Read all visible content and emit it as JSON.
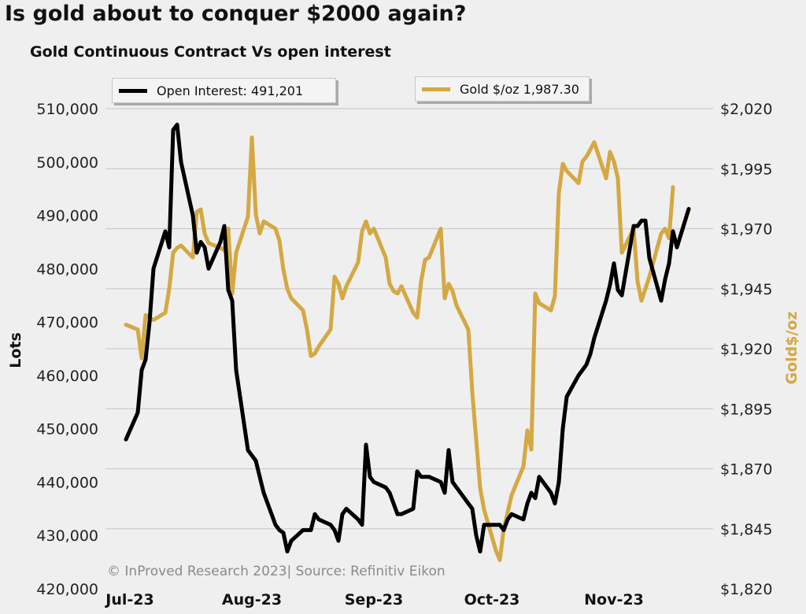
{
  "title": "Is gold about to conquer $2000 again?",
  "subtitle": "Gold Continuous Contract Vs open interest",
  "credit": "© InProved Research 2023| Source: Refinitiv Eikon",
  "colors": {
    "open_interest": "#000000",
    "gold": "#d4a843",
    "grid": "#cccccc",
    "background": "#efefef"
  },
  "chart_data": {
    "type": "line",
    "xlabel": "",
    "x_ticks": [
      "Jul-23",
      "Aug-23",
      "Sep-23",
      "Oct-23",
      "Nov-23"
    ],
    "y_left": {
      "label": "Lots",
      "lim": [
        420000,
        510000
      ],
      "ticks": [
        "420,000",
        "430,000",
        "440,000",
        "450,000",
        "460,000",
        "470,000",
        "480,000",
        "490,000",
        "500,000",
        "510,000"
      ]
    },
    "y_right": {
      "label": "Gold$/oz",
      "lim": [
        1820,
        2020
      ],
      "ticks": [
        "$1,820",
        "$1,845",
        "$1,870",
        "$1,895",
        "$1,920",
        "$1,945",
        "$1,970",
        "$1,995",
        "$2,020"
      ]
    },
    "grid": "horizontal",
    "legend_position": "top",
    "series": [
      {
        "name": "Open Interest: 491,201",
        "axis": "left",
        "points": [
          [
            "2023-06-30",
            448000
          ],
          [
            "2023-07-03",
            453000
          ],
          [
            "2023-07-04",
            461000
          ],
          [
            "2023-07-05",
            463000
          ],
          [
            "2023-07-06",
            470000
          ],
          [
            "2023-07-07",
            480000
          ],
          [
            "2023-07-10",
            487000
          ],
          [
            "2023-07-11",
            484000
          ],
          [
            "2023-07-12",
            506000
          ],
          [
            "2023-07-13",
            507000
          ],
          [
            "2023-07-14",
            500000
          ],
          [
            "2023-07-17",
            490000
          ],
          [
            "2023-07-18",
            483000
          ],
          [
            "2023-07-19",
            485000
          ],
          [
            "2023-07-20",
            484000
          ],
          [
            "2023-07-21",
            480000
          ],
          [
            "2023-07-24",
            485000
          ],
          [
            "2023-07-25",
            488000
          ],
          [
            "2023-07-26",
            476000
          ],
          [
            "2023-07-27",
            474000
          ],
          [
            "2023-07-28",
            461000
          ],
          [
            "2023-07-31",
            446000
          ],
          [
            "2023-08-01",
            445000
          ],
          [
            "2023-08-02",
            444000
          ],
          [
            "2023-08-03",
            441000
          ],
          [
            "2023-08-04",
            438000
          ],
          [
            "2023-08-07",
            432000
          ],
          [
            "2023-08-08",
            431000
          ],
          [
            "2023-08-09",
            430500
          ],
          [
            "2023-08-10",
            427000
          ],
          [
            "2023-08-11",
            429000
          ],
          [
            "2023-08-14",
            431000
          ],
          [
            "2023-08-15",
            431000
          ],
          [
            "2023-08-16",
            431000
          ],
          [
            "2023-08-17",
            434000
          ],
          [
            "2023-08-18",
            433000
          ],
          [
            "2023-08-21",
            432000
          ],
          [
            "2023-08-22",
            431000
          ],
          [
            "2023-08-23",
            429000
          ],
          [
            "2023-08-24",
            434000
          ],
          [
            "2023-08-25",
            435000
          ],
          [
            "2023-08-28",
            433000
          ],
          [
            "2023-08-29",
            432000
          ],
          [
            "2023-08-30",
            447000
          ],
          [
            "2023-08-31",
            441000
          ],
          [
            "2023-09-01",
            440000
          ],
          [
            "2023-09-04",
            439000
          ],
          [
            "2023-09-05",
            438000
          ],
          [
            "2023-09-06",
            436000
          ],
          [
            "2023-09-07",
            434000
          ],
          [
            "2023-09-08",
            434000
          ],
          [
            "2023-09-11",
            435000
          ],
          [
            "2023-09-12",
            442000
          ],
          [
            "2023-09-13",
            441000
          ],
          [
            "2023-09-14",
            441000
          ],
          [
            "2023-09-15",
            441000
          ],
          [
            "2023-09-18",
            440000
          ],
          [
            "2023-09-19",
            438000
          ],
          [
            "2023-09-20",
            446000
          ],
          [
            "2023-09-21",
            440000
          ],
          [
            "2023-09-22",
            439000
          ],
          [
            "2023-09-25",
            436000
          ],
          [
            "2023-09-26",
            435000
          ],
          [
            "2023-09-27",
            430000
          ],
          [
            "2023-09-28",
            427000
          ],
          [
            "2023-09-29",
            432000
          ],
          [
            "2023-10-02",
            432000
          ],
          [
            "2023-10-03",
            432000
          ],
          [
            "2023-10-04",
            431000
          ],
          [
            "2023-10-05",
            433000
          ],
          [
            "2023-10-06",
            434000
          ],
          [
            "2023-10-09",
            433000
          ],
          [
            "2023-10-10",
            436000
          ],
          [
            "2023-10-11",
            438000
          ],
          [
            "2023-10-12",
            437000
          ],
          [
            "2023-10-13",
            441000
          ],
          [
            "2023-10-16",
            438000
          ],
          [
            "2023-10-17",
            436000
          ],
          [
            "2023-10-18",
            440000
          ],
          [
            "2023-10-19",
            450000
          ],
          [
            "2023-10-20",
            456000
          ],
          [
            "2023-10-23",
            460000
          ],
          [
            "2023-10-24",
            461000
          ],
          [
            "2023-10-25",
            462000
          ],
          [
            "2023-10-26",
            464000
          ],
          [
            "2023-10-27",
            467000
          ],
          [
            "2023-10-30",
            474000
          ],
          [
            "2023-10-31",
            477000
          ],
          [
            "2023-11-01",
            481000
          ],
          [
            "2023-11-02",
            476000
          ],
          [
            "2023-11-03",
            475000
          ],
          [
            "2023-11-06",
            488000
          ],
          [
            "2023-11-07",
            488000
          ],
          [
            "2023-11-08",
            489000
          ],
          [
            "2023-11-09",
            489000
          ],
          [
            "2023-11-10",
            482000
          ],
          [
            "2023-11-13",
            474000
          ],
          [
            "2023-11-14",
            478000
          ],
          [
            "2023-11-15",
            481000
          ],
          [
            "2023-11-16",
            487000
          ],
          [
            "2023-11-17",
            484000
          ],
          [
            "2023-11-20",
            491201
          ]
        ]
      },
      {
        "name": "Gold $/oz 1,987.30",
        "axis": "right",
        "points": [
          [
            "2023-06-30",
            1930
          ],
          [
            "2023-07-03",
            1928
          ],
          [
            "2023-07-04",
            1916
          ],
          [
            "2023-07-05",
            1934
          ],
          [
            "2023-07-06",
            1933
          ],
          [
            "2023-07-07",
            1932
          ],
          [
            "2023-07-10",
            1935
          ],
          [
            "2023-07-11",
            1945
          ],
          [
            "2023-07-12",
            1960
          ],
          [
            "2023-07-13",
            1962
          ],
          [
            "2023-07-14",
            1963
          ],
          [
            "2023-07-17",
            1958
          ],
          [
            "2023-07-18",
            1977
          ],
          [
            "2023-07-19",
            1978
          ],
          [
            "2023-07-20",
            1968
          ],
          [
            "2023-07-21",
            1964
          ],
          [
            "2023-07-24",
            1962
          ],
          [
            "2023-07-25",
            1961
          ],
          [
            "2023-07-26",
            1970
          ],
          [
            "2023-07-27",
            1943
          ],
          [
            "2023-07-28",
            1960
          ],
          [
            "2023-07-31",
            1975
          ],
          [
            "2023-08-01",
            2008
          ],
          [
            "2023-08-02",
            1976
          ],
          [
            "2023-08-03",
            1968
          ],
          [
            "2023-08-04",
            1973
          ],
          [
            "2023-08-07",
            1970
          ],
          [
            "2023-08-08",
            1965
          ],
          [
            "2023-08-09",
            1953
          ],
          [
            "2023-08-10",
            1945
          ],
          [
            "2023-08-11",
            1941
          ],
          [
            "2023-08-14",
            1936
          ],
          [
            "2023-08-15",
            1928
          ],
          [
            "2023-08-16",
            1917
          ],
          [
            "2023-08-17",
            1918
          ],
          [
            "2023-08-18",
            1921
          ],
          [
            "2023-08-21",
            1928
          ],
          [
            "2023-08-22",
            1950
          ],
          [
            "2023-08-23",
            1947
          ],
          [
            "2023-08-24",
            1941
          ],
          [
            "2023-08-25",
            1946
          ],
          [
            "2023-08-28",
            1956
          ],
          [
            "2023-08-29",
            1969
          ],
          [
            "2023-08-30",
            1973
          ],
          [
            "2023-08-31",
            1968
          ],
          [
            "2023-09-01",
            1970
          ],
          [
            "2023-09-04",
            1958
          ],
          [
            "2023-09-05",
            1947
          ],
          [
            "2023-09-06",
            1944
          ],
          [
            "2023-09-07",
            1943
          ],
          [
            "2023-09-08",
            1946
          ],
          [
            "2023-09-11",
            1935
          ],
          [
            "2023-09-12",
            1933
          ],
          [
            "2023-09-13",
            1948
          ],
          [
            "2023-09-14",
            1957
          ],
          [
            "2023-09-15",
            1958
          ],
          [
            "2023-09-18",
            1970
          ],
          [
            "2023-09-19",
            1941
          ],
          [
            "2023-09-20",
            1947
          ],
          [
            "2023-09-21",
            1944
          ],
          [
            "2023-09-22",
            1938
          ],
          [
            "2023-09-25",
            1928
          ],
          [
            "2023-09-26",
            1902
          ],
          [
            "2023-09-27",
            1882
          ],
          [
            "2023-09-28",
            1862
          ],
          [
            "2023-09-29",
            1853
          ],
          [
            "2023-10-02",
            1836
          ],
          [
            "2023-10-03",
            1832
          ],
          [
            "2023-10-04",
            1845
          ],
          [
            "2023-10-05",
            1852
          ],
          [
            "2023-10-06",
            1859
          ],
          [
            "2023-10-09",
            1871
          ],
          [
            "2023-10-10",
            1886
          ],
          [
            "2023-10-11",
            1878
          ],
          [
            "2023-10-12",
            1943
          ],
          [
            "2023-10-13",
            1939
          ],
          [
            "2023-10-16",
            1936
          ],
          [
            "2023-10-17",
            1942
          ],
          [
            "2023-10-18",
            1985
          ],
          [
            "2023-10-19",
            1997
          ],
          [
            "2023-10-20",
            1994
          ],
          [
            "2023-10-23",
            1989
          ],
          [
            "2023-10-24",
            1998
          ],
          [
            "2023-10-25",
            2000
          ],
          [
            "2023-10-26",
            2003
          ],
          [
            "2023-10-27",
            2006
          ],
          [
            "2023-10-30",
            1991
          ],
          [
            "2023-10-31",
            2002
          ],
          [
            "2023-11-01",
            1998
          ],
          [
            "2023-11-02",
            1991
          ],
          [
            "2023-11-03",
            1960
          ],
          [
            "2023-11-06",
            1970
          ],
          [
            "2023-11-07",
            1948
          ],
          [
            "2023-11-08",
            1940
          ],
          [
            "2023-11-09",
            1945
          ],
          [
            "2023-11-10",
            1950
          ],
          [
            "2023-11-13",
            1968
          ],
          [
            "2023-11-14",
            1970
          ],
          [
            "2023-11-15",
            1966
          ],
          [
            "2023-11-16",
            1987.3
          ]
        ]
      }
    ]
  }
}
